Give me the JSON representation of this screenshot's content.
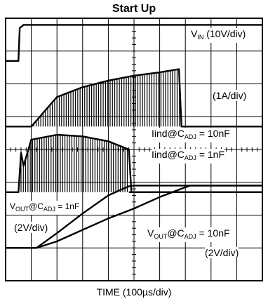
{
  "chart_data": {
    "type": "line",
    "title": "Start Up",
    "xlabel": "TIME (100µs/div)",
    "x_divisions": 10,
    "y_divisions": 8,
    "grid": true,
    "annotations": {
      "vin_main": "V",
      "vin_sub": "IN",
      "vin_scale": "(10V/div)",
      "current_scale": "(1A/div)",
      "iind10_main": "Iind@C",
      "iind10_sub": "ADJ",
      "iind10_val": "= 10nF",
      "iind1_main": "Iind@C",
      "iind1_sub": "ADJ",
      "iind1_val": "= 1nF",
      "vout1_main": "V",
      "vout1_sub": "OUT",
      "vout1_mid": "@C",
      "vout1_sub2": "ADJ",
      "vout1_val": "= 1nF",
      "vout1_scale": "(2V/div)",
      "vout10_main": "V",
      "vout10_sub": "OUT",
      "vout10_mid": "@C",
      "vout10_sub2": "ADJ",
      "vout10_val": "= 10nF",
      "vout10_scale": "(2V/div)"
    },
    "series": [
      {
        "name": "VIN",
        "scale": "10V/div",
        "baseline_div": 1.3,
        "x": [
          0,
          0.5,
          0.55,
          0.7,
          10
        ],
        "y": [
          0,
          0,
          1.0,
          1.1,
          1.1
        ]
      },
      {
        "name": "Iind @ CADJ = 10nF",
        "scale": "1A/div",
        "baseline_div": 3.3,
        "x": [
          0,
          1.0,
          2.0,
          3.0,
          4.0,
          5.0,
          6.0,
          6.75,
          6.85,
          7.0,
          10
        ],
        "y": [
          0,
          0,
          0.9,
          1.2,
          1.4,
          1.55,
          1.65,
          1.75,
          0,
          0,
          0
        ]
      },
      {
        "name": "Iind @ CADJ = 1nF",
        "scale": "1A/div",
        "baseline_div": 5.3,
        "x": [
          0,
          0.5,
          0.6,
          0.7,
          1.0,
          2.0,
          3.0,
          4.0,
          4.8,
          4.9,
          10
        ],
        "y": [
          0,
          0,
          1.2,
          0.8,
          1.6,
          1.75,
          1.7,
          1.55,
          1.3,
          0,
          0
        ]
      },
      {
        "name": "VOUT @ CADJ = 1nF",
        "scale": "2V/div",
        "baseline_div": 7.0,
        "x": [
          0,
          1.2,
          2.0,
          3.0,
          4.0,
          4.8,
          5.0,
          10
        ],
        "y": [
          0,
          0,
          0.45,
          1.05,
          1.6,
          1.88,
          1.9,
          1.9
        ]
      },
      {
        "name": "VOUT @ CADJ = 10nF",
        "scale": "2V/div",
        "baseline_div": 7.0,
        "x": [
          0,
          1.2,
          2.0,
          3.0,
          4.0,
          5.0,
          6.0,
          7.0,
          7.2,
          10
        ],
        "y": [
          0,
          0,
          0.2,
          0.55,
          0.9,
          1.2,
          1.55,
          1.85,
          1.9,
          1.9
        ]
      }
    ]
  }
}
